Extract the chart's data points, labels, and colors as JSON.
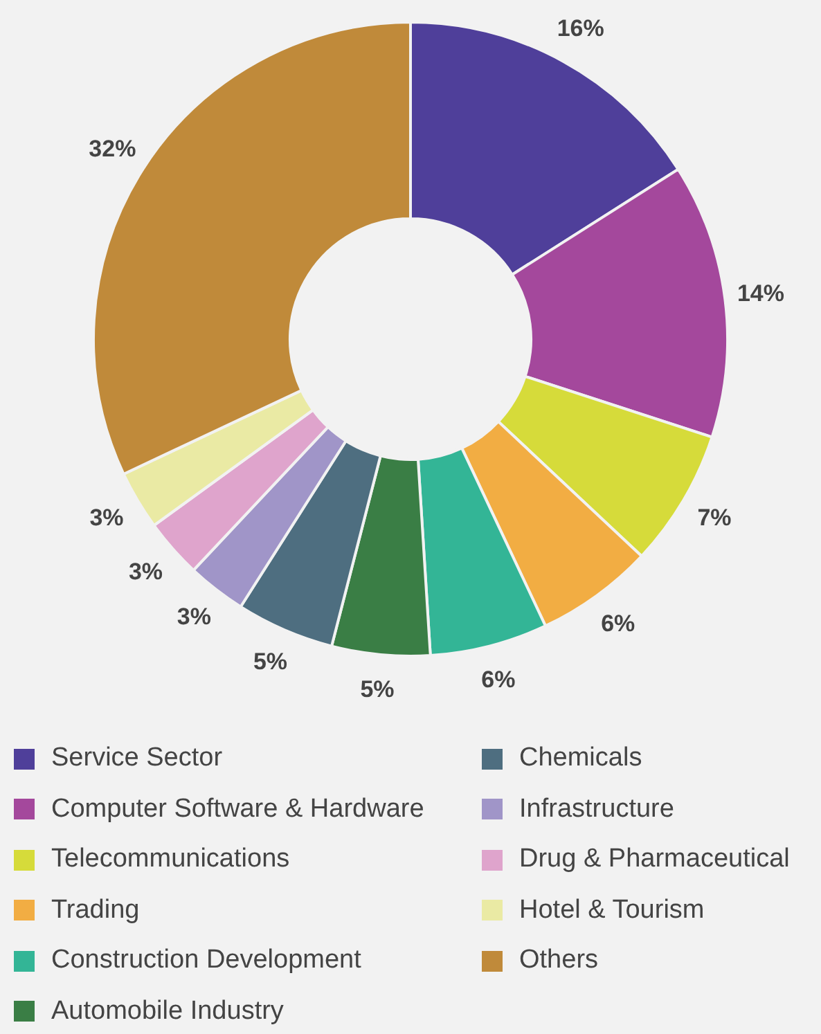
{
  "chart_data": {
    "type": "donut",
    "categories": [
      "Service Sector",
      "Computer Software & Hardware",
      "Telecommunications",
      "Trading",
      "Construction Development",
      "Automobile Industry",
      "Chemicals",
      "Infrastructure",
      "Drug & Pharmaceutical",
      "Hotel & Tourism",
      "Others"
    ],
    "values": [
      16,
      14,
      7,
      6,
      6,
      5,
      5,
      3,
      3,
      3,
      32
    ],
    "value_labels": [
      "16%",
      "14%",
      "7%",
      "6%",
      "6%",
      "5%",
      "5%",
      "3%",
      "3%",
      "3%",
      "32%"
    ],
    "colors": [
      "#4f3f9a",
      "#a4489c",
      "#d6db3a",
      "#f2ad43",
      "#33b596",
      "#3a7e45",
      "#4e6e80",
      "#a095c8",
      "#dfa4cc",
      "#eaeaa4",
      "#c08a3a"
    ],
    "legend": "bottom"
  }
}
